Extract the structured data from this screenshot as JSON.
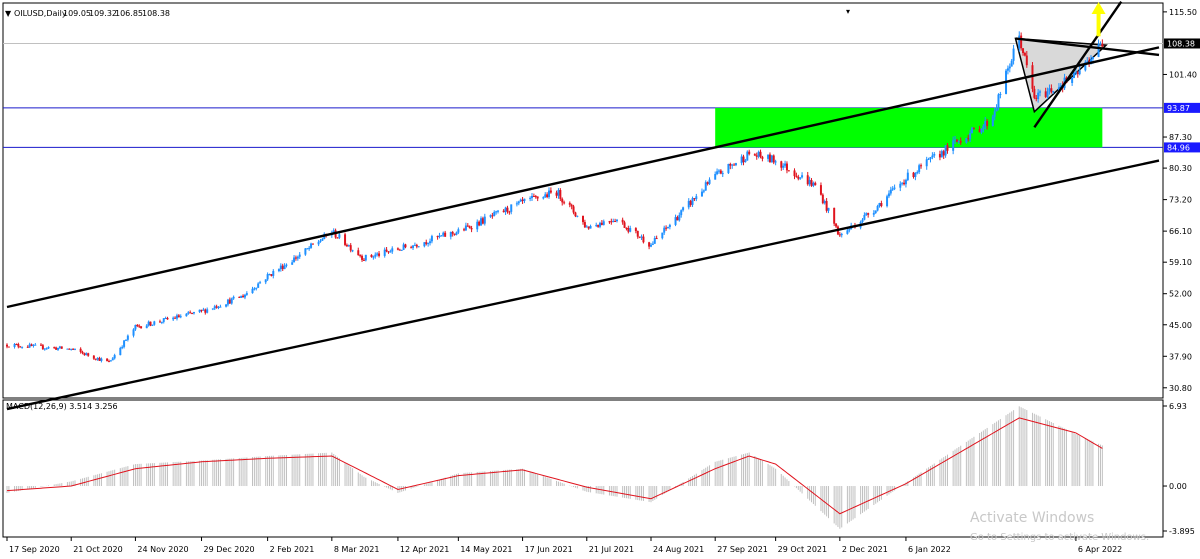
{
  "chart_data": [
    {
      "type": "candlestick",
      "header": {
        "menu_icon": "triangle-down-icon",
        "symbol": "OILUSD,Daily",
        "ohlc": [
          "109.05",
          "109.32",
          "106.85",
          "108.38"
        ]
      },
      "ylim": [
        28.5,
        117.5
      ],
      "y_ticks": [
        30.8,
        37.9,
        45.0,
        52.0,
        59.1,
        66.1,
        73.2,
        80.3,
        87.3,
        101.4,
        115.5
      ],
      "y_tick_labels": [
        "30.80",
        "37.90",
        "45.00",
        "52.00",
        "59.10",
        "66.10",
        "73.20",
        "80.30",
        "87.30",
        "101.40",
        "115.50"
      ],
      "x_ticks": [
        "17 Sep 2020",
        "21 Oct 2020",
        "24 Nov 2020",
        "29 Dec 2020",
        "2 Feb 2021",
        "8 Mar 2021",
        "12 Apr 2021",
        "14 May 2021",
        "17 Jun 2021",
        "21 Jul 2021",
        "24 Aug 2021",
        "27 Sep 2021",
        "29 Oct 2021",
        "2 Dec 2021",
        "6 Jan 2022",
        "6 Apr 2022"
      ],
      "price_labels": [
        {
          "value": 108.38,
          "text": "108.38",
          "color": "#000000"
        },
        {
          "value": 93.87,
          "text": "93.87",
          "color": "#1a1aff"
        },
        {
          "value": 84.96,
          "text": "84.96",
          "color": "#1a1aff"
        }
      ],
      "horizontal_lines": [
        {
          "value": 108.38,
          "color": "#c0c0c0"
        },
        {
          "value": 93.87,
          "color": "#1a1acc"
        },
        {
          "value": 84.96,
          "color": "#1a1acc"
        }
      ],
      "zone": {
        "from_date": "27 Sep 2021",
        "to_date": "20 Apr 2022",
        "low": 84.96,
        "high": 93.87,
        "color": "#00ff00"
      },
      "trendlines": [
        {
          "from": [
            "17 Sep 2020",
            49.0
          ],
          "to": [
            "20 May 2022",
            107.5
          ]
        },
        {
          "from": [
            "17 Sep 2020",
            26.0
          ],
          "to": [
            "20 May 2022",
            82.0
          ]
        },
        {
          "from": [
            "5 Mar 2022",
            109.5
          ],
          "to": [
            "20 May 2022",
            105.8
          ]
        },
        {
          "from": [
            "15 Mar 2022",
            89.5
          ],
          "to": [
            "30 Apr 2022",
            117.8
          ]
        }
      ],
      "triangle": {
        "points": [
          [
            "5 Mar 2022",
            109.5
          ],
          [
            "22 Apr 2022",
            108.0
          ],
          [
            "15 Mar 2022",
            93.0
          ]
        ],
        "color": "#d9d9d9"
      },
      "arrow": {
        "date": "18 Apr 2022",
        "from": 110.0,
        "to": 119.0,
        "color": "#ffff00"
      },
      "bull_color": "#1e90ff",
      "bear_color": "#e0141e",
      "series": {
        "dates": [
          "17 Sep 2020",
          "21 Oct 2020",
          "10 Nov 2020",
          "24 Nov 2020",
          "29 Dec 2020",
          "20 Jan 2021",
          "2 Feb 2021",
          "20 Feb 2021",
          "8 Mar 2021",
          "25 Mar 2021",
          "12 Apr 2021",
          "14 May 2021",
          "17 Jun 2021",
          "5 Jul 2021",
          "21 Jul 2021",
          "5 Aug 2021",
          "24 Aug 2021",
          "27 Sep 2021",
          "15 Oct 2021",
          "29 Oct 2021",
          "20 Nov 2021",
          "2 Dec 2021",
          "20 Dec 2021",
          "6 Jan 2022",
          "1 Feb 2022",
          "20 Feb 2022",
          "7 Mar 2022",
          "15 Mar 2022",
          "6 Apr 2022",
          "20 Apr 2022"
        ],
        "values": [
          40.5,
          39.5,
          36.5,
          44.5,
          48.0,
          51.5,
          56.0,
          61.0,
          66.0,
          60.0,
          62.0,
          66.0,
          72.5,
          75.0,
          67.0,
          69.0,
          63.0,
          78.5,
          83.5,
          82.0,
          76.0,
          65.0,
          71.0,
          78.0,
          86.0,
          91.0,
          110.0,
          96.0,
          101.0,
          108.38
        ]
      }
    },
    {
      "type": "histogram",
      "title": "MACD(12,26,9) 3.514 3.256",
      "ylim": [
        -3.895,
        6.93
      ],
      "y_tick_labels": [
        "6.93",
        "0.00",
        "-3.895"
      ],
      "histogram_color": "#c0c0c0",
      "signal_color": "#e0141e",
      "series": [
        {
          "name": "MACD",
          "dates": [
            "17 Sep 2020",
            "21 Oct 2020",
            "24 Nov 2020",
            "29 Dec 2020",
            "2 Feb 2021",
            "8 Mar 2021",
            "25 Mar 2021",
            "12 Apr 2021",
            "14 May 2021",
            "17 Jun 2021",
            "21 Jul 2021",
            "24 Aug 2021",
            "27 Sep 2021",
            "15 Oct 2021",
            "29 Oct 2021",
            "2 Dec 2021",
            "6 Jan 2022",
            "7 Mar 2022",
            "6 Apr 2022",
            "20 Apr 2022"
          ],
          "values": [
            -0.6,
            0.4,
            1.9,
            2.2,
            2.6,
            2.9,
            0.8,
            -0.6,
            1.1,
            1.5,
            -0.5,
            -1.4,
            2.1,
            2.9,
            1.5,
            -3.7,
            0.3,
            6.9,
            4.5,
            3.514
          ]
        },
        {
          "name": "Signal",
          "dates": [
            "17 Sep 2020",
            "21 Oct 2020",
            "24 Nov 2020",
            "29 Dec 2020",
            "2 Feb 2021",
            "8 Mar 2021",
            "25 Mar 2021",
            "12 Apr 2021",
            "14 May 2021",
            "17 Jun 2021",
            "21 Jul 2021",
            "24 Aug 2021",
            "27 Sep 2021",
            "15 Oct 2021",
            "29 Oct 2021",
            "2 Dec 2021",
            "6 Jan 2022",
            "7 Mar 2022",
            "6 Apr 2022",
            "20 Apr 2022"
          ],
          "values": [
            -0.4,
            0.0,
            1.5,
            2.1,
            2.4,
            2.6,
            1.2,
            -0.3,
            0.9,
            1.4,
            -0.1,
            -1.1,
            1.5,
            2.6,
            1.9,
            -2.4,
            0.2,
            5.9,
            4.6,
            3.256
          ]
        }
      ]
    }
  ],
  "watermark": {
    "title": "Activate Windows",
    "subtitle": "Go to Settings to activate Windows."
  }
}
